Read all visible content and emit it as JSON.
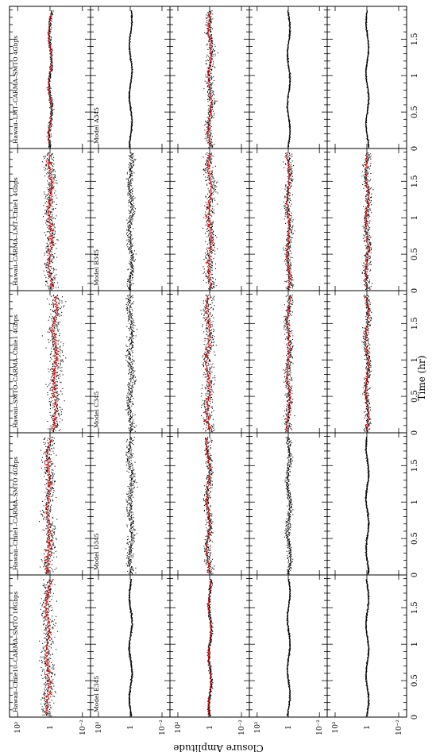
{
  "chart_data": {
    "type": "scatter",
    "orientation": "rotated-90",
    "xlabel": "Time (hr)",
    "ylabel": "Closure Amplitude",
    "x_ticks": [
      "0",
      "0.5",
      "1",
      "1.5"
    ],
    "xlim": [
      0,
      1.95
    ],
    "ylim_log10": [
      -2.5,
      2.5
    ],
    "y_tick_labels": [
      "10²",
      "1",
      "10⁻²"
    ],
    "quadrangles": [
      "Hawaii–LMT–CARMA–SMTO 4Gbps",
      "Hawaii–CARMA–LMT–Chile1 4Gbps",
      "Hawaii–SMTO–CARMA–Chile1 4Gbps",
      "Hawaii–Chile1–CARMA–SMTO 4Gbps",
      "Hawaii–Chile10–CARMA–SMTO 16Gbps"
    ],
    "models": [
      "Model A345",
      "Model B345",
      "Model C345",
      "Model D345",
      "Model E345"
    ],
    "series_colors": {
      "data": "#000000",
      "model": "#e00000"
    },
    "panels": [
      [
        {
          "level": 0.0,
          "scatter": 0.12,
          "model": true
        },
        {
          "level": 0.0,
          "scatter": 0.5,
          "model": true
        },
        {
          "level": -0.3,
          "scatter": 0.6,
          "model": true
        },
        {
          "level": 0.1,
          "scatter": 0.5,
          "model": true
        },
        {
          "level": 0.15,
          "scatter": 0.5,
          "model": true
        }
      ],
      [
        {
          "level": 0.0,
          "scatter": 0.05,
          "model": false
        },
        {
          "level": 0.0,
          "scatter": 0.25,
          "model": false
        },
        {
          "level": 0.0,
          "scatter": 0.3,
          "model": false
        },
        {
          "level": 0.0,
          "scatter": 0.3,
          "model": false
        },
        {
          "level": 0.0,
          "scatter": 0.06,
          "model": false
        }
      ],
      [
        {
          "level": 0.0,
          "scatter": 0.3,
          "model": true
        },
        {
          "level": 0.0,
          "scatter": 0.45,
          "model": true
        },
        {
          "level": 0.1,
          "scatter": 0.45,
          "model": true
        },
        {
          "level": 0.1,
          "scatter": 0.3,
          "model": true
        },
        {
          "level": 0.0,
          "scatter": 0.12,
          "model": true
        }
      ],
      [
        {
          "level": 0.0,
          "scatter": 0.05,
          "model": false
        },
        {
          "level": 0.0,
          "scatter": 0.3,
          "model": true
        },
        {
          "level": 0.0,
          "scatter": 0.3,
          "model": true
        },
        {
          "level": 0.0,
          "scatter": 0.2,
          "model": false
        },
        {
          "level": 0.0,
          "scatter": 0.05,
          "model": false
        }
      ],
      [
        {
          "level": 0.0,
          "scatter": 0.05,
          "model": false
        },
        {
          "level": 0.0,
          "scatter": 0.3,
          "model": true
        },
        {
          "level": 0.0,
          "scatter": 0.25,
          "model": true
        },
        {
          "level": 0.0,
          "scatter": 0.06,
          "model": false
        },
        {
          "level": 0.0,
          "scatter": 0.05,
          "model": false
        }
      ]
    ]
  }
}
